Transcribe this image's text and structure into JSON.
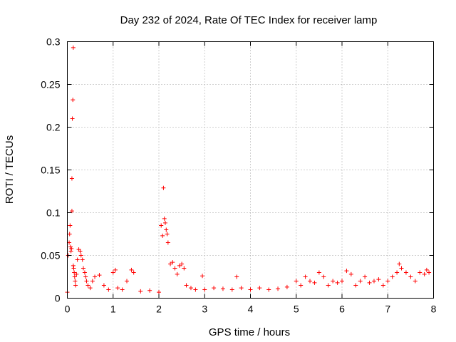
{
  "chart_data": {
    "type": "scatter",
    "title": "Day 232 of 2024, Rate Of TEC Index for receiver lamp",
    "xlabel": "GPS time / hours",
    "ylabel": "ROTI / TECUs",
    "xlim": [
      0,
      8
    ],
    "ylim": [
      0,
      0.3
    ],
    "xticks": [
      0,
      1,
      2,
      3,
      4,
      5,
      6,
      7,
      8
    ],
    "xtick_labels": [
      "0",
      "1",
      "2",
      "3",
      "4",
      "5",
      "6",
      "7",
      "8"
    ],
    "yticks": [
      0,
      0.05,
      0.1,
      0.15,
      0.2,
      0.25,
      0.3
    ],
    "ytick_labels": [
      "0",
      "0.05",
      "0.1",
      "0.15",
      "0.2",
      "0.25",
      "0.3"
    ],
    "grid": true,
    "marker": "+",
    "series": [
      {
        "name": "ROTI",
        "color": "#ff0000",
        "x": [
          0.0,
          0.02,
          0.04,
          0.05,
          0.06,
          0.07,
          0.08,
          0.09,
          0.1,
          0.1,
          0.11,
          0.12,
          0.13,
          0.13,
          0.14,
          0.15,
          0.16,
          0.17,
          0.18,
          0.2,
          0.22,
          0.25,
          0.28,
          0.3,
          0.33,
          0.35,
          0.38,
          0.4,
          0.42,
          0.45,
          0.5,
          0.55,
          0.6,
          0.7,
          0.8,
          0.9,
          1.0,
          1.05,
          1.1,
          1.2,
          1.3,
          1.4,
          1.45,
          1.6,
          1.8,
          2.0,
          2.05,
          2.08,
          2.1,
          2.12,
          2.14,
          2.16,
          2.18,
          2.2,
          2.25,
          2.3,
          2.35,
          2.4,
          2.45,
          2.5,
          2.55,
          2.6,
          2.7,
          2.8,
          2.95,
          3.0,
          3.2,
          3.4,
          3.6,
          3.7,
          3.8,
          4.0,
          4.2,
          4.4,
          4.6,
          4.8,
          5.0,
          5.1,
          5.2,
          5.3,
          5.4,
          5.5,
          5.6,
          5.7,
          5.8,
          5.9,
          6.0,
          6.1,
          6.2,
          6.3,
          6.4,
          6.5,
          6.6,
          6.7,
          6.8,
          6.9,
          7.0,
          7.1,
          7.2,
          7.25,
          7.3,
          7.4,
          7.5,
          7.6,
          7.7,
          7.8,
          7.85,
          7.9
        ],
        "y": [
          0.007,
          0.05,
          0.065,
          0.075,
          0.085,
          0.06,
          0.055,
          0.058,
          0.14,
          0.102,
          0.21,
          0.232,
          0.293,
          0.038,
          0.035,
          0.03,
          0.025,
          0.02,
          0.015,
          0.028,
          0.045,
          0.057,
          0.055,
          0.05,
          0.045,
          0.035,
          0.03,
          0.025,
          0.02,
          0.015,
          0.012,
          0.02,
          0.025,
          0.027,
          0.015,
          0.01,
          0.03,
          0.033,
          0.012,
          0.01,
          0.02,
          0.033,
          0.03,
          0.008,
          0.009,
          0.007,
          0.085,
          0.073,
          0.129,
          0.093,
          0.088,
          0.08,
          0.075,
          0.065,
          0.04,
          0.042,
          0.035,
          0.028,
          0.038,
          0.04,
          0.035,
          0.015,
          0.012,
          0.01,
          0.026,
          0.01,
          0.012,
          0.011,
          0.01,
          0.025,
          0.012,
          0.01,
          0.012,
          0.01,
          0.011,
          0.013,
          0.02,
          0.015,
          0.025,
          0.02,
          0.018,
          0.03,
          0.025,
          0.015,
          0.02,
          0.018,
          0.02,
          0.032,
          0.028,
          0.015,
          0.02,
          0.025,
          0.018,
          0.02,
          0.022,
          0.015,
          0.02,
          0.025,
          0.03,
          0.04,
          0.035,
          0.03,
          0.025,
          0.02,
          0.03,
          0.028,
          0.033,
          0.03
        ]
      }
    ]
  }
}
